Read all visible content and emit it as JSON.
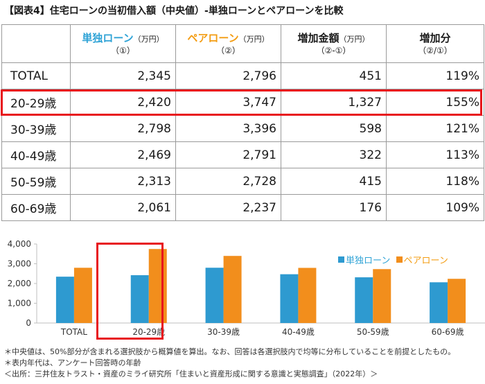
{
  "title": "【図表4】住宅ローンの当初借入額（中央値）-単独ローンとペアローンを比較",
  "table": {
    "headers": [
      {
        "label": "単独ローン",
        "unit": "（万円）",
        "sub": "（①）"
      },
      {
        "label": "ペアローン",
        "unit": "（万円）",
        "sub": "（②）"
      },
      {
        "label": "増加金額",
        "unit": "（万円）",
        "sub": "（②-①）"
      },
      {
        "label": "増加分",
        "unit": "",
        "sub": "（②/①）"
      }
    ],
    "rows": [
      {
        "label": "TOTAL",
        "single": "2,345",
        "pair": "2,796",
        "increase": "451",
        "ratio": "119%"
      },
      {
        "label": "20-29歳",
        "single": "2,420",
        "pair": "3,747",
        "increase": "1,327",
        "ratio": "155%"
      },
      {
        "label": "30-39歳",
        "single": "2,798",
        "pair": "3,396",
        "increase": "598",
        "ratio": "121%"
      },
      {
        "label": "40-49歳",
        "single": "2,469",
        "pair": "2,791",
        "increase": "322",
        "ratio": "113%"
      },
      {
        "label": "50-59歳",
        "single": "2,313",
        "pair": "2,728",
        "increase": "415",
        "ratio": "118%"
      },
      {
        "label": "60-69歳",
        "single": "2,061",
        "pair": "2,237",
        "increase": "176",
        "ratio": "109%"
      }
    ]
  },
  "chart_data": {
    "type": "bar",
    "categories": [
      "TOTAL",
      "20-29歳",
      "30-39歳",
      "40-49歳",
      "50-59歳",
      "60-69歳"
    ],
    "series": [
      {
        "name": "単独ローン",
        "values": [
          2345,
          2420,
          2798,
          2469,
          2313,
          2061
        ],
        "color": "#2e9ad0"
      },
      {
        "name": "ペアローン",
        "values": [
          2796,
          3747,
          3396,
          2791,
          2728,
          2237
        ],
        "color": "#f28e1c"
      }
    ],
    "yticks": [
      "0",
      "1,000",
      "2,000",
      "3,000",
      "4,000"
    ],
    "ylim": [
      0,
      4000
    ],
    "legend": "top-right",
    "highlight_category": "20-29歳",
    "grid": false
  },
  "colors": {
    "highlight": "#e8141c",
    "single": "#2fa3d6",
    "pair": "#f39c12"
  },
  "notes": [
    "＊中央値は、50%部分が含まれる選択肢から概算値を算出。なお、回答は各選択肢内で均等に分布していることを前提としたもの。",
    "＊表内年代は、アンケート回答時の年齢",
    "＜出所：三井住友トラスト・資産のミライ研究所「住まいと資産形成に関する意識と実態調査」（2022年）＞"
  ]
}
